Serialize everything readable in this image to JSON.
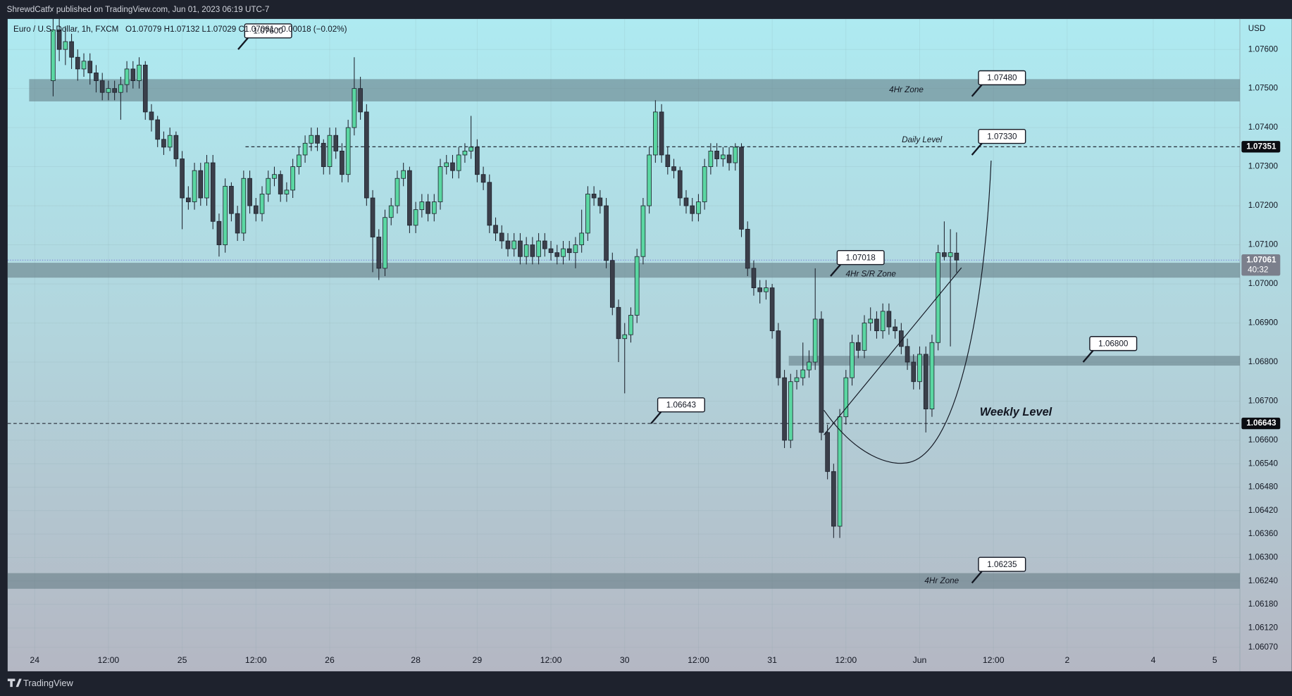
{
  "header": "ShrewdCatfx published on TradingView.com, Jun 01, 2023 06:19 UTC-7",
  "footer": "TradingView",
  "chart_data": {
    "type": "candlestick",
    "symbol": "Euro / U.S. Dollar, 1h, FXCM",
    "ohlc_legend": "O1.07079 H1.07132 L1.07029 C1.07061 −0.00018 (−0.02%)",
    "y_axis_label": "USD",
    "up_color": "#5ad7a2",
    "down_color": "#3b3f4a",
    "grid": true,
    "xlim": [
      -7.4,
      193.1
    ],
    "ylim": [
      1.06051,
      1.07678
    ],
    "yticks": [
      {
        "value": 1.076,
        "label": "1.07600"
      },
      {
        "value": 1.075,
        "label": "1.07500"
      },
      {
        "value": 1.074,
        "label": "1.07400"
      },
      {
        "value": 1.073,
        "label": "1.07300"
      },
      {
        "value": 1.072,
        "label": "1.07200"
      },
      {
        "value": 1.071,
        "label": "1.07100"
      },
      {
        "value": 1.07,
        "label": "1.07000"
      },
      {
        "value": 1.069,
        "label": "1.06900"
      },
      {
        "value": 1.068,
        "label": "1.06800"
      },
      {
        "value": 1.067,
        "label": "1.06700"
      },
      {
        "value": 1.066,
        "label": "1.06600"
      },
      {
        "value": 1.0654,
        "label": "1.06540"
      },
      {
        "value": 1.0648,
        "label": "1.06480"
      },
      {
        "value": 1.0642,
        "label": "1.06420"
      },
      {
        "value": 1.0636,
        "label": "1.06360"
      },
      {
        "value": 1.063,
        "label": "1.06300"
      },
      {
        "value": 1.0624,
        "label": "1.06240"
      },
      {
        "value": 1.0618,
        "label": "1.06180"
      },
      {
        "value": 1.0612,
        "label": "1.06120"
      },
      {
        "value": 1.0607,
        "label": "1.06070"
      }
    ],
    "xticks": [
      {
        "value": -3,
        "label": "24"
      },
      {
        "value": 9,
        "label": "12:00"
      },
      {
        "value": 21,
        "label": "25"
      },
      {
        "value": 33,
        "label": "12:00"
      },
      {
        "value": 45,
        "label": "26"
      },
      {
        "value": 59,
        "label": "28"
      },
      {
        "value": 69,
        "label": "29"
      },
      {
        "value": 81,
        "label": "12:00"
      },
      {
        "value": 93,
        "label": "30"
      },
      {
        "value": 105,
        "label": "12:00"
      },
      {
        "value": 117,
        "label": "31"
      },
      {
        "value": 129,
        "label": "12:00"
      },
      {
        "value": 141,
        "label": "Jun"
      },
      {
        "value": 153,
        "label": "12:00"
      },
      {
        "value": 165,
        "label": "2"
      },
      {
        "value": 179,
        "label": "4"
      },
      {
        "value": 189,
        "label": "5"
      }
    ],
    "candles": [
      [
        1.0752,
        1.077,
        1.0748,
        1.0765
      ],
      [
        1.0765,
        1.0768,
        1.0757,
        1.076
      ],
      [
        1.076,
        1.0766,
        1.0756,
        1.0762
      ],
      [
        1.0762,
        1.0764,
        1.0755,
        1.0758
      ],
      [
        1.0758,
        1.076,
        1.0752,
        1.0755
      ],
      [
        1.0755,
        1.0759,
        1.0753,
        1.0757
      ],
      [
        1.0757,
        1.0759,
        1.0751,
        1.0754
      ],
      [
        1.0754,
        1.0756,
        1.0749,
        1.0752
      ],
      [
        1.0752,
        1.0754,
        1.0747,
        1.0749
      ],
      [
        1.0749,
        1.0752,
        1.0747,
        1.075
      ],
      [
        1.075,
        1.0752,
        1.0747,
        1.0749
      ],
      [
        1.0749,
        1.0753,
        1.0742,
        1.0751
      ],
      [
        1.0751,
        1.0757,
        1.0749,
        1.0755
      ],
      [
        1.0755,
        1.0757,
        1.075,
        1.0752
      ],
      [
        1.0752,
        1.0758,
        1.075,
        1.0756
      ],
      [
        1.0756,
        1.0757,
        1.0742,
        1.0744
      ],
      [
        1.0744,
        1.0746,
        1.0739,
        1.0742
      ],
      [
        1.0742,
        1.0743,
        1.0735,
        1.0737
      ],
      [
        1.0737,
        1.0739,
        1.0733,
        1.0735
      ],
      [
        1.0735,
        1.074,
        1.0734,
        1.0738
      ],
      [
        1.0738,
        1.0739,
        1.073,
        1.0732
      ],
      [
        1.0732,
        1.0734,
        1.0714,
        1.0722
      ],
      [
        1.0722,
        1.0725,
        1.0719,
        1.0721
      ],
      [
        1.0721,
        1.0731,
        1.0719,
        1.0729
      ],
      [
        1.0729,
        1.0731,
        1.072,
        1.0722
      ],
      [
        1.0722,
        1.0733,
        1.072,
        1.0731
      ],
      [
        1.0731,
        1.0733,
        1.0714,
        1.0716
      ],
      [
        1.0716,
        1.0718,
        1.0707,
        1.071
      ],
      [
        1.071,
        1.0727,
        1.0708,
        1.0725
      ],
      [
        1.0725,
        1.0726,
        1.0716,
        1.0718
      ],
      [
        1.0718,
        1.072,
        1.0711,
        1.0713
      ],
      [
        1.0713,
        1.0729,
        1.0711,
        1.0727
      ],
      [
        1.0727,
        1.0729,
        1.0718,
        1.072
      ],
      [
        1.072,
        1.0722,
        1.0716,
        1.0718
      ],
      [
        1.0718,
        1.0725,
        1.0716,
        1.0723
      ],
      [
        1.0723,
        1.0729,
        1.0721,
        1.0727
      ],
      [
        1.0727,
        1.073,
        1.0725,
        1.0728
      ],
      [
        1.0728,
        1.0729,
        1.0721,
        1.0723
      ],
      [
        1.0723,
        1.0726,
        1.0721,
        1.0724
      ],
      [
        1.0724,
        1.0732,
        1.0722,
        1.073
      ],
      [
        1.073,
        1.0735,
        1.0728,
        1.0733
      ],
      [
        1.0733,
        1.0738,
        1.0731,
        1.0736
      ],
      [
        1.0736,
        1.074,
        1.0734,
        1.0738
      ],
      [
        1.0738,
        1.074,
        1.0734,
        1.0736
      ],
      [
        1.0736,
        1.0737,
        1.0728,
        1.073
      ],
      [
        1.073,
        1.074,
        1.0728,
        1.0738
      ],
      [
        1.0738,
        1.074,
        1.0732,
        1.0734
      ],
      [
        1.0734,
        1.0736,
        1.0726,
        1.0728
      ],
      [
        1.0728,
        1.0742,
        1.0726,
        1.074
      ],
      [
        1.074,
        1.0758,
        1.0738,
        1.075
      ],
      [
        1.075,
        1.0753,
        1.0742,
        1.0744
      ],
      [
        1.0744,
        1.0746,
        1.072,
        1.0722
      ],
      [
        1.0722,
        1.0724,
        1.0703,
        1.0712
      ],
      [
        1.0712,
        1.0714,
        1.0701,
        1.0704
      ],
      [
        1.0704,
        1.0719,
        1.0702,
        1.0717
      ],
      [
        1.0717,
        1.0722,
        1.0715,
        1.072
      ],
      [
        1.072,
        1.0729,
        1.0718,
        1.0727
      ],
      [
        1.0727,
        1.0731,
        1.0725,
        1.0729
      ],
      [
        1.0729,
        1.073,
        1.0713,
        1.0715
      ],
      [
        1.0715,
        1.0721,
        1.0713,
        1.0719
      ],
      [
        1.0719,
        1.0723,
        1.0717,
        1.0721
      ],
      [
        1.0721,
        1.0723,
        1.0716,
        1.0718
      ],
      [
        1.0718,
        1.0723,
        1.0716,
        1.0721
      ],
      [
        1.0721,
        1.0732,
        1.0719,
        1.073
      ],
      [
        1.073,
        1.0733,
        1.0728,
        1.0731
      ],
      [
        1.0731,
        1.0733,
        1.0727,
        1.0729
      ],
      [
        1.0729,
        1.0735,
        1.0727,
        1.0733
      ],
      [
        1.0733,
        1.0736,
        1.0731,
        1.0734
      ],
      [
        1.0734,
        1.0743,
        1.0732,
        1.0735
      ],
      [
        1.0735,
        1.0737,
        1.0726,
        1.0728
      ],
      [
        1.0728,
        1.073,
        1.0724,
        1.0726
      ],
      [
        1.0726,
        1.0728,
        1.0713,
        1.0715
      ],
      [
        1.0715,
        1.0717,
        1.0711,
        1.0713
      ],
      [
        1.0713,
        1.0715,
        1.0709,
        1.0711
      ],
      [
        1.0711,
        1.0713,
        1.0707,
        1.0709
      ],
      [
        1.0709,
        1.0713,
        1.0707,
        1.0711
      ],
      [
        1.0711,
        1.0713,
        1.0705,
        1.0707
      ],
      [
        1.0707,
        1.0712,
        1.0705,
        1.071
      ],
      [
        1.071,
        1.0712,
        1.0705,
        1.0707
      ],
      [
        1.0707,
        1.0713,
        1.0705,
        1.0711
      ],
      [
        1.0711,
        1.0713,
        1.0707,
        1.0709
      ],
      [
        1.0709,
        1.0711,
        1.0706,
        1.0708
      ],
      [
        1.0708,
        1.071,
        1.0705,
        1.0707
      ],
      [
        1.0707,
        1.0711,
        1.0705,
        1.0709
      ],
      [
        1.0709,
        1.0711,
        1.0706,
        1.0708
      ],
      [
        1.0708,
        1.0712,
        1.0704,
        1.071
      ],
      [
        1.071,
        1.0719,
        1.0708,
        1.0713
      ],
      [
        1.0713,
        1.0725,
        1.0711,
        1.0723
      ],
      [
        1.0723,
        1.0725,
        1.072,
        1.0722
      ],
      [
        1.0722,
        1.0724,
        1.0718,
        1.072
      ],
      [
        1.072,
        1.0722,
        1.0704,
        1.0706
      ],
      [
        1.0706,
        1.0708,
        1.0692,
        1.0694
      ],
      [
        1.0694,
        1.0696,
        1.068,
        1.0686
      ],
      [
        1.0686,
        1.069,
        1.0672,
        1.0687
      ],
      [
        1.0687,
        1.0694,
        1.0685,
        1.0692
      ],
      [
        1.0692,
        1.0709,
        1.069,
        1.0707
      ],
      [
        1.0707,
        1.0722,
        1.0705,
        1.072
      ],
      [
        1.072,
        1.0735,
        1.0718,
        1.0733
      ],
      [
        1.0733,
        1.0747,
        1.0731,
        1.0744
      ],
      [
        1.0744,
        1.0746,
        1.0731,
        1.0733
      ],
      [
        1.0733,
        1.0735,
        1.0728,
        1.073
      ],
      [
        1.073,
        1.0732,
        1.0727,
        1.0729
      ],
      [
        1.0729,
        1.073,
        1.072,
        1.0722
      ],
      [
        1.0722,
        1.0724,
        1.0718,
        1.072
      ],
      [
        1.072,
        1.0722,
        1.0716,
        1.0718
      ],
      [
        1.0718,
        1.0723,
        1.0716,
        1.0721
      ],
      [
        1.0721,
        1.0732,
        1.0719,
        1.073
      ],
      [
        1.073,
        1.0736,
        1.0728,
        1.0734
      ],
      [
        1.0734,
        1.0736,
        1.073,
        1.0732
      ],
      [
        1.0732,
        1.0735,
        1.073,
        1.0733
      ],
      [
        1.0733,
        1.0735,
        1.0729,
        1.0731
      ],
      [
        1.0731,
        1.0736,
        1.0729,
        1.0735
      ],
      [
        1.0735,
        1.0736,
        1.0712,
        1.0714
      ],
      [
        1.0714,
        1.0716,
        1.0702,
        1.0704
      ],
      [
        1.0704,
        1.0706,
        1.0697,
        1.0699
      ],
      [
        1.0699,
        1.0701,
        1.0695,
        1.0698
      ],
      [
        1.0698,
        1.0701,
        1.0696,
        1.0699
      ],
      [
        1.0699,
        1.07,
        1.0686,
        1.0688
      ],
      [
        1.0688,
        1.069,
        1.0674,
        1.0676
      ],
      [
        1.0676,
        1.0678,
        1.0658,
        1.066
      ],
      [
        1.066,
        1.0677,
        1.0658,
        1.0675
      ],
      [
        1.0675,
        1.0678,
        1.0673,
        1.0676
      ],
      [
        1.0676,
        1.0685,
        1.0674,
        1.0678
      ],
      [
        1.0678,
        1.0683,
        1.0676,
        1.068
      ],
      [
        1.068,
        1.0704,
        1.0678,
        1.0691
      ],
      [
        1.0691,
        1.0693,
        1.066,
        1.0662
      ],
      [
        1.0662,
        1.0664,
        1.065,
        1.0652
      ],
      [
        1.0652,
        1.0654,
        1.0635,
        1.0638
      ],
      [
        1.0638,
        1.0668,
        1.0635,
        1.0666
      ],
      [
        1.0666,
        1.0678,
        1.0664,
        1.0676
      ],
      [
        1.0676,
        1.0687,
        1.0674,
        1.0685
      ],
      [
        1.0685,
        1.0687,
        1.0681,
        1.0683
      ],
      [
        1.0683,
        1.0692,
        1.0681,
        1.069
      ],
      [
        1.069,
        1.0694,
        1.0688,
        1.0691
      ],
      [
        1.0691,
        1.0693,
        1.0686,
        1.0688
      ],
      [
        1.0688,
        1.0695,
        1.0686,
        1.0693
      ],
      [
        1.0693,
        1.0695,
        1.0687,
        1.0689
      ],
      [
        1.0689,
        1.0691,
        1.0686,
        1.0688
      ],
      [
        1.0688,
        1.069,
        1.0682,
        1.0684
      ],
      [
        1.0684,
        1.0686,
        1.0678,
        1.068
      ],
      [
        1.068,
        1.0682,
        1.0673,
        1.0675
      ],
      [
        1.0675,
        1.0684,
        1.0673,
        1.0682
      ],
      [
        1.0682,
        1.0684,
        1.0662,
        1.0668
      ],
      [
        1.0668,
        1.0687,
        1.0666,
        1.0685
      ],
      [
        1.0685,
        1.071,
        1.0683,
        1.0708
      ],
      [
        1.0708,
        1.0716,
        1.0706,
        1.0707
      ],
      [
        1.0707,
        1.0714,
        1.0684,
        1.0708
      ],
      [
        1.07079,
        1.07132,
        1.07029,
        1.07061
      ]
    ],
    "zones": [
      {
        "label": "4Hr Zone",
        "from": 1.07467,
        "to": 1.07524,
        "x0": -3.9
      },
      {
        "label": "4Hr S/R Zone",
        "from": 1.07016,
        "to": 1.07054
      },
      {
        "from": 1.06791,
        "to": 1.06816,
        "x0": 119.7
      },
      {
        "label": "4Hr Zone",
        "from": 1.0622,
        "to": 1.0626
      }
    ],
    "levels": [
      {
        "label": "Daily Level",
        "value": 1.07351,
        "x0": 31.3
      },
      {
        "label": "Weekly Level",
        "value": 1.06643
      }
    ],
    "callouts": [
      {
        "value": 1.076,
        "label": "1.07600",
        "x": 30.1
      },
      {
        "value": 1.0748,
        "label": "1.07480",
        "x": 149.5
      },
      {
        "value": 1.0733,
        "label": "1.07330",
        "x": 149.5
      },
      {
        "value": 1.0702,
        "label": "1.07018",
        "x": 126.5
      },
      {
        "value": 1.068,
        "label": "1.06800",
        "x": 167.6
      },
      {
        "value": 1.06643,
        "label": "1.06643",
        "x": 97.3
      },
      {
        "value": 1.06235,
        "label": "1.06235",
        "x": 149.5
      }
    ],
    "price_tags": [
      {
        "value": 1.07351
      },
      {
        "value": 1.07061,
        "countdown": "40:32"
      },
      {
        "value": 1.06643
      }
    ]
  }
}
